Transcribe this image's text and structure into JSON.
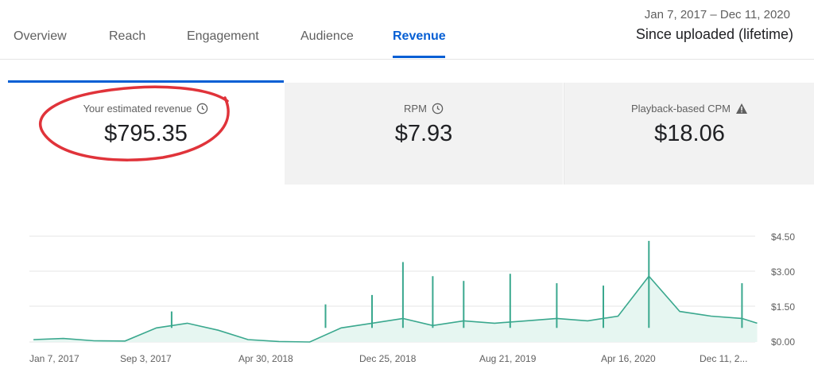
{
  "tabs": [
    {
      "label": "Overview"
    },
    {
      "label": "Reach"
    },
    {
      "label": "Engagement"
    },
    {
      "label": "Audience"
    },
    {
      "label": "Revenue",
      "active": true
    }
  ],
  "header": {
    "date_range": "Jan 7, 2017 – Dec 11, 2020",
    "period": "Since uploaded (lifetime)"
  },
  "cards": [
    {
      "label": "Your estimated revenue",
      "value": "$795.35",
      "icon": "clock-icon"
    },
    {
      "label": "RPM",
      "value": "$7.93",
      "icon": "clock-icon"
    },
    {
      "label": "Playback-based CPM",
      "value": "$18.06",
      "icon": "warning-icon"
    }
  ],
  "colors": {
    "accent": "#065fd4",
    "line": "#3aa88e",
    "fill": "#e6f6f1",
    "annotation": "#e0333a"
  },
  "chart_data": {
    "type": "area",
    "x_labels": [
      "Jan 7, 2017",
      "Sep 3, 2017",
      "Apr 30, 2018",
      "Dec 25, 2018",
      "Aug 21, 2019",
      "Apr 16, 2020",
      "Dec 11, 2..."
    ],
    "y_ticks": [
      "$4.50",
      "$3.00",
      "$1.50",
      "$0.00"
    ],
    "ylim": [
      0,
      4.5
    ],
    "x": [
      "2017-01",
      "2017-03",
      "2017-05",
      "2017-07",
      "2017-09",
      "2017-11",
      "2018-01",
      "2018-03",
      "2018-05",
      "2018-07",
      "2018-09",
      "2018-11",
      "2019-01",
      "2019-03",
      "2019-05",
      "2019-07",
      "2019-09",
      "2019-11",
      "2020-01",
      "2020-03",
      "2020-05",
      "2020-07",
      "2020-09",
      "2020-11",
      "2020-12"
    ],
    "series": [
      {
        "values": [
          0.1,
          0.15,
          0.05,
          0.04,
          0.6,
          0.8,
          0.5,
          0.1,
          0.02,
          0.0,
          0.6,
          0.8,
          1.0,
          0.7,
          0.9,
          0.8,
          0.9,
          1.0,
          0.9,
          1.1,
          2.8,
          1.3,
          1.1,
          1.0,
          0.8
        ]
      }
    ],
    "peaks": [
      {
        "x": "2017-10",
        "y": 1.3
      },
      {
        "x": "2018-08",
        "y": 1.6
      },
      {
        "x": "2018-11",
        "y": 2.0
      },
      {
        "x": "2019-01",
        "y": 3.4
      },
      {
        "x": "2019-03",
        "y": 2.8
      },
      {
        "x": "2019-05",
        "y": 2.6
      },
      {
        "x": "2019-08",
        "y": 2.9
      },
      {
        "x": "2019-11",
        "y": 2.5
      },
      {
        "x": "2020-02",
        "y": 2.4
      },
      {
        "x": "2020-05",
        "y": 4.3
      },
      {
        "x": "2020-11",
        "y": 2.5
      }
    ],
    "grid": true
  }
}
